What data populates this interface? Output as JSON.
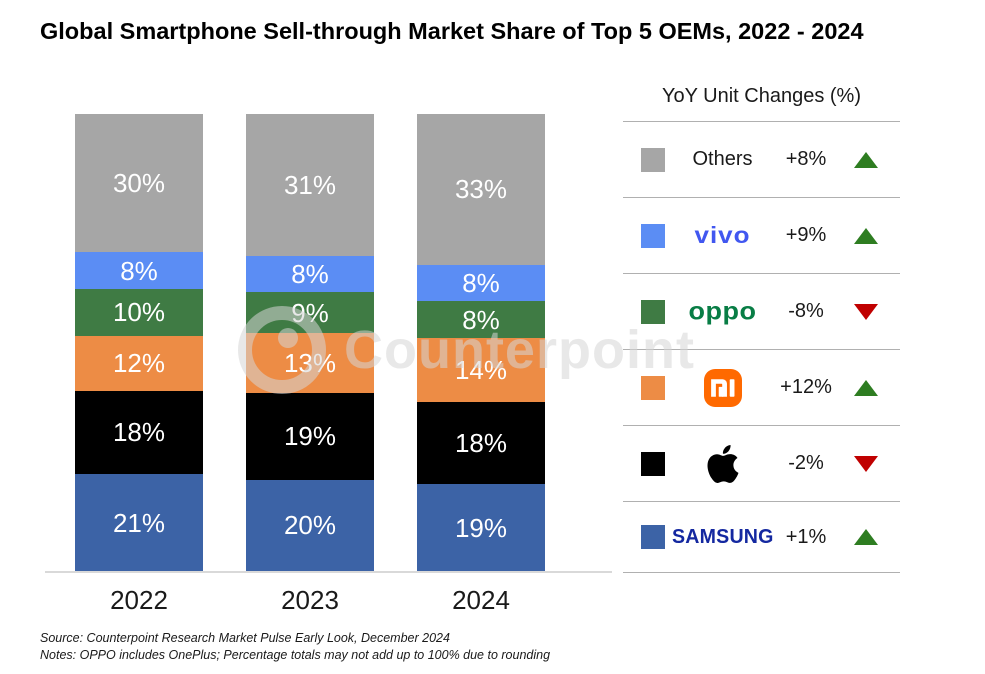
{
  "title": "Global Smartphone Sell-through Market Share of Top 5 OEMs, 2022 - 2024",
  "watermark_text": "Counterpoint",
  "chart_data": {
    "type": "bar",
    "variant": "stacked-column-100pct",
    "title": "Global Smartphone Sell-through Market Share of Top 5 OEMs, 2022 - 2024",
    "categories": [
      "2022",
      "2023",
      "2024"
    ],
    "unit": "%",
    "ylim": [
      0,
      100
    ],
    "grid": false,
    "legend_position": "right",
    "value_labels_shown": true,
    "series": [
      {
        "name": "Samsung",
        "color": "#3c63a6",
        "values": [
          21,
          20,
          19
        ]
      },
      {
        "name": "Apple",
        "color": "#000000",
        "values": [
          18,
          19,
          18
        ]
      },
      {
        "name": "Xiaomi",
        "color": "#ed8c45",
        "values": [
          12,
          13,
          14
        ]
      },
      {
        "name": "OPPO",
        "color": "#3f7b44",
        "values": [
          10,
          9,
          8
        ]
      },
      {
        "name": "vivo",
        "color": "#5b8df4",
        "values": [
          8,
          8,
          8
        ]
      },
      {
        "name": "Others",
        "color": "#a6a6a6",
        "values": [
          30,
          31,
          33
        ]
      }
    ]
  },
  "legend": {
    "header": "YoY Unit Changes (%)",
    "rows": [
      {
        "brand": "others",
        "label": "Others",
        "change": "+8%",
        "direction": "up",
        "swatch": "#a6a6a6"
      },
      {
        "brand": "vivo",
        "label": "vivo",
        "change": "+9%",
        "direction": "up",
        "swatch": "#5b8df4"
      },
      {
        "brand": "oppo",
        "label": "oppo",
        "change": "-8%",
        "direction": "down",
        "swatch": "#3f7b44"
      },
      {
        "brand": "xiaomi",
        "label": "mi",
        "change": "+12%",
        "direction": "up",
        "swatch": "#ed8c45"
      },
      {
        "brand": "apple",
        "label": "Apple",
        "change": "-2%",
        "direction": "down",
        "swatch": "#000000"
      },
      {
        "brand": "samsung",
        "label": "SAMSUNG",
        "change": "+1%",
        "direction": "up",
        "swatch": "#3c63a6"
      }
    ]
  },
  "brand_colors": {
    "vivo_logo": "#4157f0",
    "oppo_logo": "#087d45",
    "xiaomi_logo_bg": "#ff6900",
    "samsung_logo": "#1428a0",
    "trend_up": "#2e7d21",
    "trend_down": "#c00000"
  },
  "footnotes": {
    "source": "Source: Counterpoint Research Market Pulse Early Look, December 2024",
    "notes": "Notes: OPPO includes OnePlus; Percentage totals may not add up to 100% due to rounding"
  }
}
